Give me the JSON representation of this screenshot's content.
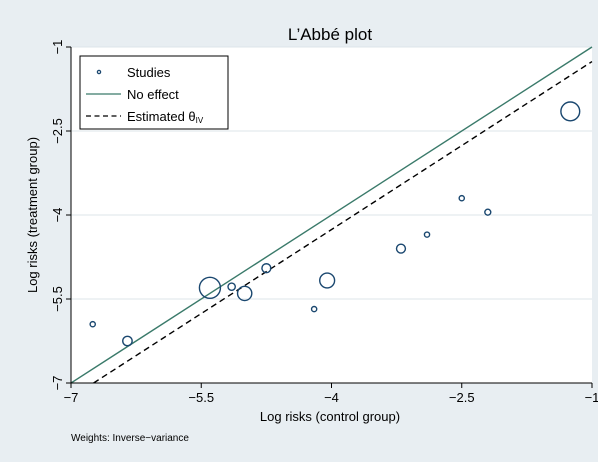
{
  "chart_data": {
    "type": "scatter",
    "title": "L’Abbé plot",
    "xlabel": "Log risks (control group)",
    "ylabel": "Log risks (treatment group)",
    "xlim": [
      -7,
      -1
    ],
    "ylim": [
      -7,
      -1
    ],
    "xticks": [
      -7,
      -5.5,
      -4,
      -2.5,
      -1
    ],
    "yticks": [
      -7,
      -5.5,
      -4,
      -2.5,
      -1
    ],
    "xtick_labels": [
      "−7",
      "−5.5",
      "−4",
      "−2.5",
      "−1"
    ],
    "ytick_labels": [
      "−7",
      "−5.5",
      "−4",
      "−2.5",
      "−1"
    ],
    "grid": "horizontal",
    "legend_position": "top-left",
    "legend": {
      "studies": "Studies",
      "no_effect": "No effect",
      "estimated": "Estimated θ",
      "estimated_sub": "IV"
    },
    "note": "Weights: Inverse−variance",
    "no_effect_line": {
      "intercept": 0,
      "slope": 1
    },
    "estimated_line": {
      "intercept": -0.26,
      "slope": 1
    },
    "series": [
      {
        "points": [
          {
            "x": -6.75,
            "y": -5.95,
            "weight": 0.3
          },
          {
            "x": -6.35,
            "y": -6.25,
            "weight": 1
          },
          {
            "x": -5.4,
            "y": -5.3,
            "weight": 5
          },
          {
            "x": -5.15,
            "y": -5.28,
            "weight": 0.6
          },
          {
            "x": -5.0,
            "y": -5.4,
            "weight": 2.3
          },
          {
            "x": -4.75,
            "y": -4.95,
            "weight": 0.9
          },
          {
            "x": -4.2,
            "y": -5.68,
            "weight": 0.3
          },
          {
            "x": -4.05,
            "y": -5.17,
            "weight": 2.5
          },
          {
            "x": -3.2,
            "y": -4.6,
            "weight": 0.9
          },
          {
            "x": -2.9,
            "y": -4.35,
            "weight": 0.3
          },
          {
            "x": -2.5,
            "y": -3.7,
            "weight": 0.3
          },
          {
            "x": -2.2,
            "y": -3.95,
            "weight": 0.4
          },
          {
            "x": -1.25,
            "y": -2.15,
            "weight": 4
          }
        ]
      }
    ],
    "colors": {
      "background": "#e8eef2",
      "plot_bg": "#ffffff",
      "marker": "#1a476f",
      "no_effect": "#3a7a6a",
      "estimated": "#000000",
      "grid": "#dde4ea"
    }
  }
}
